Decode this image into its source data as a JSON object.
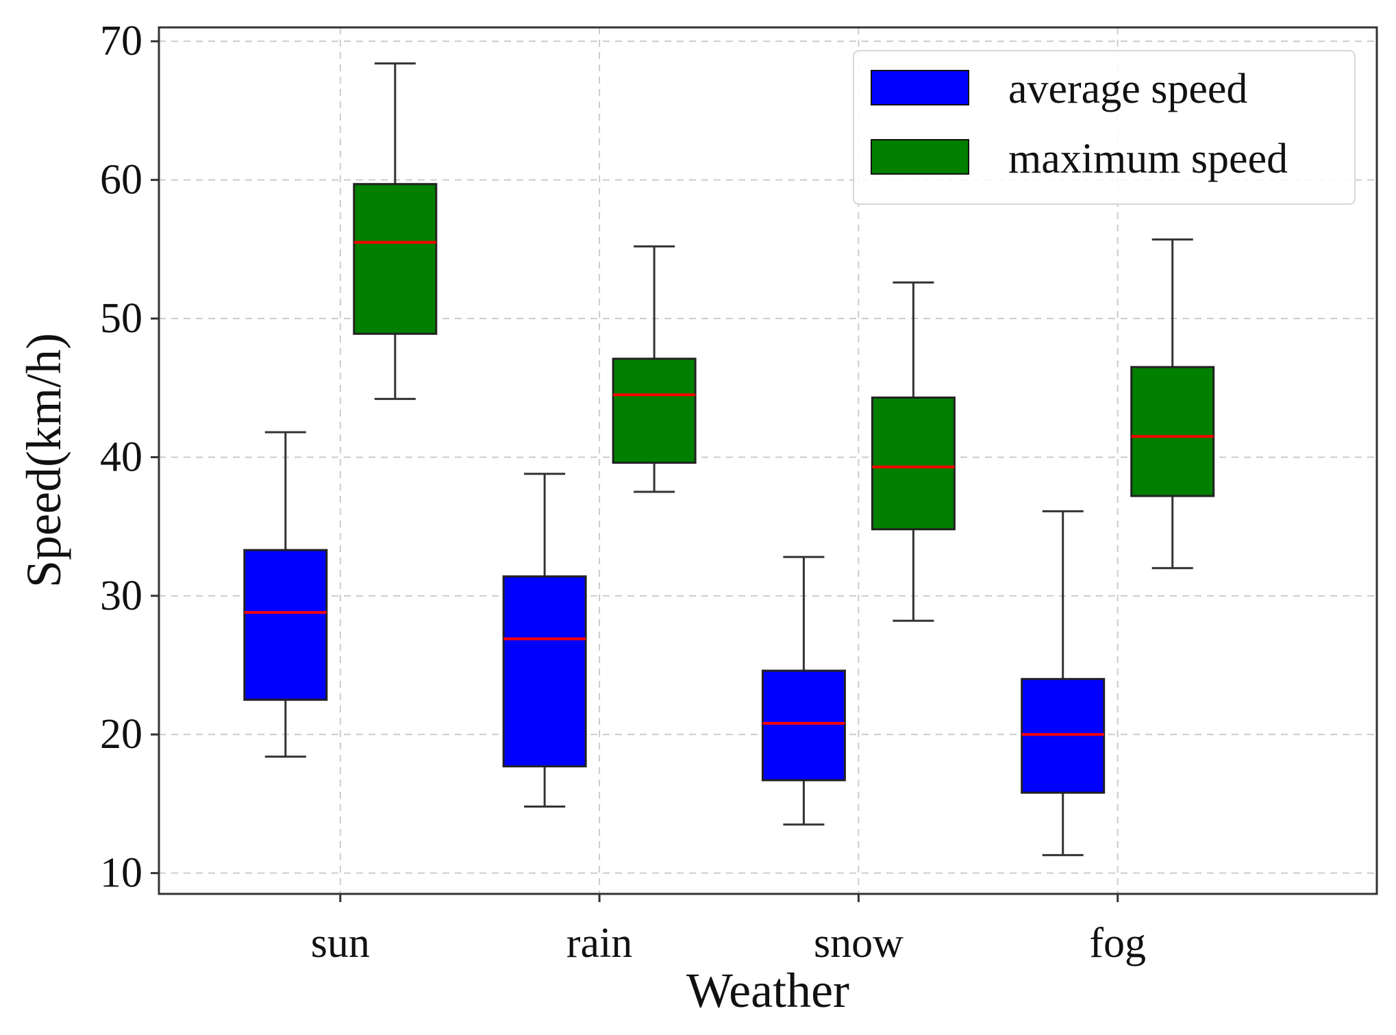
{
  "chart_data": {
    "type": "boxplot",
    "title": "",
    "xlabel": "Weather",
    "ylabel": "Speed(km/h)",
    "categories": [
      "sun",
      "rain",
      "snow",
      "fog"
    ],
    "ylim": [
      8.5,
      71
    ],
    "yticks": [
      10,
      20,
      30,
      40,
      50,
      60,
      70
    ],
    "grid": true,
    "legend_position": "top-right",
    "series": [
      {
        "name": "average speed",
        "color": "#0000ff",
        "boxes": [
          {
            "whisker_low": 18.4,
            "q1": 22.5,
            "median": 28.8,
            "q3": 33.3,
            "whisker_high": 41.8
          },
          {
            "whisker_low": 14.8,
            "q1": 17.7,
            "median": 26.9,
            "q3": 31.4,
            "whisker_high": 38.8
          },
          {
            "whisker_low": 13.5,
            "q1": 16.7,
            "median": 20.8,
            "q3": 24.6,
            "whisker_high": 32.8
          },
          {
            "whisker_low": 11.3,
            "q1": 15.8,
            "median": 20.0,
            "q3": 24.0,
            "whisker_high": 36.1
          }
        ]
      },
      {
        "name": "maximum speed",
        "color": "#007f00",
        "boxes": [
          {
            "whisker_low": 44.2,
            "q1": 48.9,
            "median": 55.5,
            "q3": 59.7,
            "whisker_high": 68.4
          },
          {
            "whisker_low": 37.5,
            "q1": 39.6,
            "median": 44.5,
            "q3": 47.1,
            "whisker_high": 55.2
          },
          {
            "whisker_low": 28.2,
            "q1": 34.8,
            "median": 39.3,
            "q3": 44.3,
            "whisker_high": 52.6
          },
          {
            "whisker_low": 32.0,
            "q1": 37.2,
            "median": 41.5,
            "q3": 46.5,
            "whisker_high": 55.7
          }
        ]
      }
    ],
    "median_color": "#ff0000",
    "whisker_color": "#333333",
    "grid_color": "#cccccc"
  }
}
